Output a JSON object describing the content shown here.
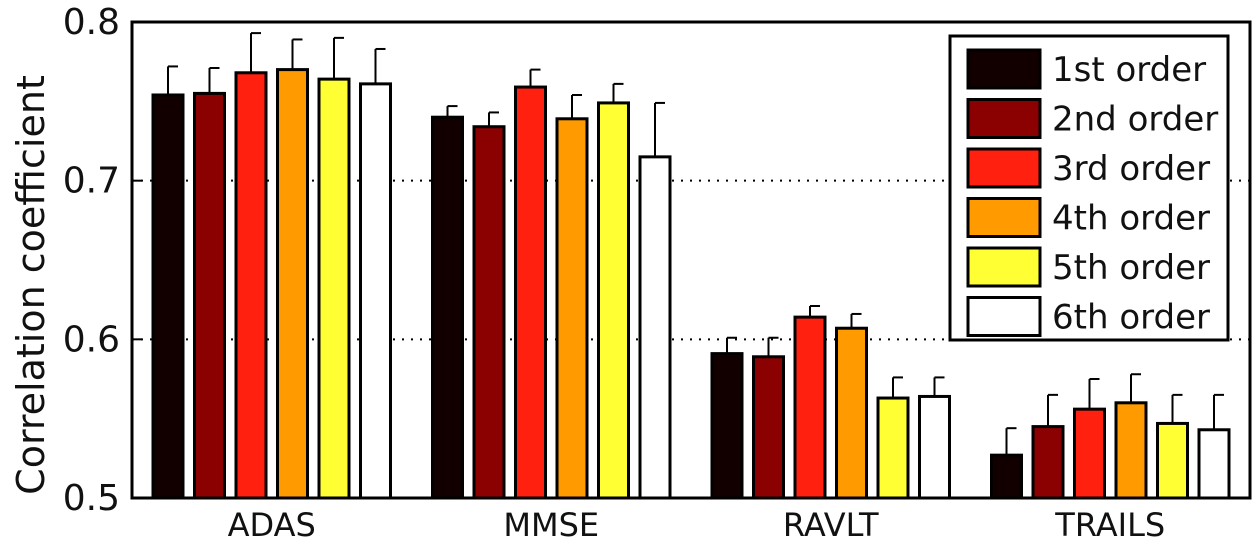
{
  "chart_data": {
    "type": "bar",
    "title": "",
    "xlabel": "",
    "ylabel": "Correlation coefficient",
    "ylim": [
      0.5,
      0.8
    ],
    "yticks": [
      "0.5",
      "0.6",
      "0.7",
      "0.8"
    ],
    "grid": "dotted horizontal lines at 0.6 and 0.7",
    "legend_position": "top-right",
    "categories": [
      "ADAS",
      "MMSE",
      "RAVLT",
      "TRAILS"
    ],
    "series": [
      {
        "name": "1st order",
        "color": "#120000",
        "values": [
          0.754,
          0.74,
          0.591,
          0.527
        ],
        "errors": [
          0.018,
          0.007,
          0.01,
          0.017
        ]
      },
      {
        "name": "2nd order",
        "color": "#8b0000",
        "values": [
          0.755,
          0.734,
          0.589,
          0.545
        ],
        "errors": [
          0.016,
          0.009,
          0.012,
          0.02
        ]
      },
      {
        "name": "3rd order",
        "color": "#ff2010",
        "values": [
          0.768,
          0.759,
          0.614,
          0.556
        ],
        "errors": [
          0.025,
          0.011,
          0.007,
          0.019
        ]
      },
      {
        "name": "4th order",
        "color": "#ff9a00",
        "values": [
          0.77,
          0.739,
          0.607,
          0.56
        ],
        "errors": [
          0.019,
          0.015,
          0.009,
          0.018
        ]
      },
      {
        "name": "5th order",
        "color": "#ffff33",
        "values": [
          0.764,
          0.749,
          0.563,
          0.547
        ],
        "errors": [
          0.026,
          0.012,
          0.013,
          0.018
        ]
      },
      {
        "name": "6th order",
        "color": "#ffffff",
        "values": [
          0.761,
          0.715,
          0.564,
          0.543
        ],
        "errors": [
          0.022,
          0.034,
          0.012,
          0.022
        ]
      }
    ]
  }
}
